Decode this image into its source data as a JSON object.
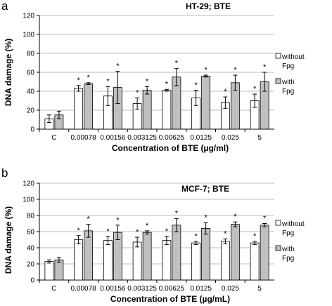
{
  "chart_data": [
    {
      "panel": "a",
      "type": "bar",
      "title": "HT-29; BTE",
      "xlabel": "Concentration of BTE (µg/ml)",
      "ylabel": "DNA damage (%)",
      "ylim": [
        0,
        120
      ],
      "yticks": [
        0,
        20,
        40,
        60,
        80,
        100,
        120
      ],
      "grid": "horizontal",
      "legend_position": "right",
      "categories": [
        "C",
        "0.00078",
        "0.00156",
        "0.003125",
        "0.00625",
        "0.0125",
        "0.025",
        "5"
      ],
      "significance_marker": "*",
      "series": [
        {
          "name": "without Fpg",
          "legend_lines": [
            "without",
            "Fpg"
          ],
          "color": "#ffffff",
          "values": [
            11,
            43,
            35,
            27,
            41,
            33,
            28,
            30
          ],
          "errors": [
            4,
            3,
            10,
            6,
            1,
            8,
            6,
            7
          ],
          "significant": [
            false,
            true,
            true,
            true,
            true,
            true,
            true,
            true
          ]
        },
        {
          "name": "with Fpg",
          "legend_lines": [
            "with",
            "Fpg"
          ],
          "color": "#c0c0c0",
          "values": [
            15,
            48,
            44,
            41,
            55,
            56,
            49,
            50
          ],
          "errors": [
            4,
            1,
            17,
            4,
            9,
            1,
            8,
            10
          ],
          "significant": [
            false,
            true,
            true,
            true,
            true,
            true,
            true,
            true
          ]
        }
      ]
    },
    {
      "panel": "b",
      "type": "bar",
      "title": "MCF-7; BTE",
      "xlabel": "Concentration of BTE (µg/mL)",
      "ylabel": "DNA damage (%)",
      "ylim": [
        0,
        120
      ],
      "yticks": [
        0,
        20,
        40,
        60,
        80,
        100,
        120
      ],
      "grid": "horizontal",
      "legend_position": "right",
      "categories": [
        "C",
        "0.00078",
        "0.00156",
        "0.003125",
        "0.00625",
        "0.0125",
        "0.025",
        "5"
      ],
      "significance_marker": "*",
      "series": [
        {
          "name": "without Fpg",
          "legend_lines": [
            "without",
            "Fpg"
          ],
          "color": "#ffffff",
          "values": [
            23,
            50,
            49,
            47,
            49,
            46,
            48,
            46
          ],
          "errors": [
            2,
            5,
            5,
            6,
            5,
            2,
            3,
            2
          ],
          "significant": [
            false,
            true,
            true,
            true,
            true,
            true,
            true,
            true
          ]
        },
        {
          "name": "with Fpg",
          "legend_lines": [
            "with",
            "Fpg"
          ],
          "color": "#c0c0c0",
          "values": [
            25,
            61,
            59,
            59,
            68,
            64,
            69,
            68
          ],
          "errors": [
            3,
            8,
            9,
            2,
            8,
            7,
            3,
            2
          ],
          "significant": [
            false,
            true,
            true,
            true,
            true,
            true,
            true,
            true
          ]
        }
      ]
    }
  ]
}
